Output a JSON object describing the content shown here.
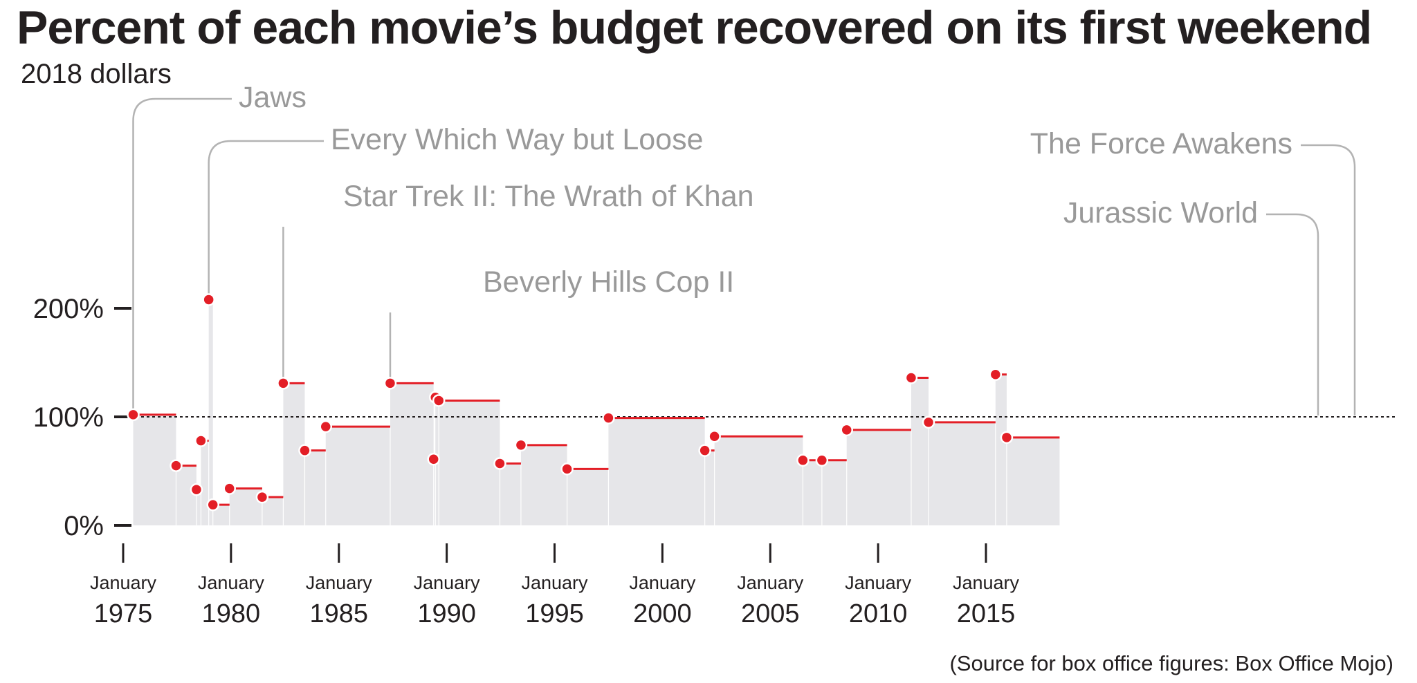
{
  "title": "Percent of each movie’s budget recovered on its first weekend",
  "subtitle": "2018 dollars",
  "source": "(Source for box office figures: Box Office Mojo)",
  "colors": {
    "fill": "#e6e6e9",
    "step": "#e31e26",
    "marker": "#e31e26",
    "marker_stroke": "#ffffff",
    "annotation": "#999999",
    "reference_line": "#231f20",
    "axis": "#231f20"
  },
  "chart_data": {
    "type": "area",
    "xlim": [
      "1974-01-01",
      "2018-06-01"
    ],
    "ylim": [
      0,
      300
    ],
    "y_ticks": [
      {
        "value": 0,
        "label": "0%"
      },
      {
        "value": 100,
        "label": "100%"
      },
      {
        "value": 200,
        "label": "200%"
      }
    ],
    "x_ticks": [
      {
        "date": "1975-01-01",
        "month": "January",
        "year": "1975"
      },
      {
        "date": "1980-01-01",
        "month": "January",
        "year": "1980"
      },
      {
        "date": "1985-01-01",
        "month": "January",
        "year": "1985"
      },
      {
        "date": "1990-01-01",
        "month": "January",
        "year": "1990"
      },
      {
        "date": "1995-01-01",
        "month": "January",
        "year": "1995"
      },
      {
        "date": "2000-01-01",
        "month": "January",
        "year": "2000"
      },
      {
        "date": "2005-01-01",
        "month": "January",
        "year": "2005"
      },
      {
        "date": "2010-01-01",
        "month": "January",
        "year": "2010"
      },
      {
        "date": "2015-01-01",
        "month": "January",
        "year": "2015"
      }
    ],
    "reference_line": {
      "value": 100,
      "style": "dotted"
    },
    "grid": false,
    "points": [
      {
        "date": "1975-06-20",
        "value": 102
      },
      {
        "date": "1977-06-15",
        "value": 55
      },
      {
        "date": "1978-05-26",
        "value": 33
      },
      {
        "date": "1978-08-10",
        "value": 78
      },
      {
        "date": "1978-12-20",
        "value": 208
      },
      {
        "date": "1979-03-01",
        "value": 19
      },
      {
        "date": "1979-12-07",
        "value": 34
      },
      {
        "date": "1981-06-12",
        "value": 26
      },
      {
        "date": "1982-06-04",
        "value": 131
      },
      {
        "date": "1983-06-03",
        "value": 69
      },
      {
        "date": "1984-05-23",
        "value": 91
      },
      {
        "date": "1987-05-20",
        "value": 131
      },
      {
        "date": "1989-05-24",
        "value": 61
      },
      {
        "date": "1989-06-23",
        "value": 118
      },
      {
        "date": "1989-08-20",
        "value": 115
      },
      {
        "date": "1992-06-19",
        "value": 57
      },
      {
        "date": "1993-06-11",
        "value": 74
      },
      {
        "date": "1995-08-01",
        "value": 52
      },
      {
        "date": "1997-07-02",
        "value": 99
      },
      {
        "date": "2001-12-19",
        "value": 69
      },
      {
        "date": "2002-06-01",
        "value": 82
      },
      {
        "date": "2006-07-07",
        "value": 60
      },
      {
        "date": "2007-05-25",
        "value": 60
      },
      {
        "date": "2008-07-18",
        "value": 88
      },
      {
        "date": "2011-07-15",
        "value": 136
      },
      {
        "date": "2012-05-04",
        "value": 95
      },
      {
        "date": "2015-06-12",
        "value": 139
      },
      {
        "date": "2015-12-18",
        "value": 81
      }
    ],
    "end_date": "2018-06-01",
    "annotations": [
      {
        "label": "Jaws",
        "point_index": 0
      },
      {
        "label": "Every Which Way but Loose",
        "point_index": 4
      },
      {
        "label": "Star Trek II: The Wrath of Khan",
        "point_index": 8
      },
      {
        "label": "Beverly Hills Cop II",
        "point_index": 11
      },
      {
        "label": "The Force Awakens",
        "point_index": 27
      },
      {
        "label": "Jurassic World",
        "point_index": 26
      }
    ]
  }
}
